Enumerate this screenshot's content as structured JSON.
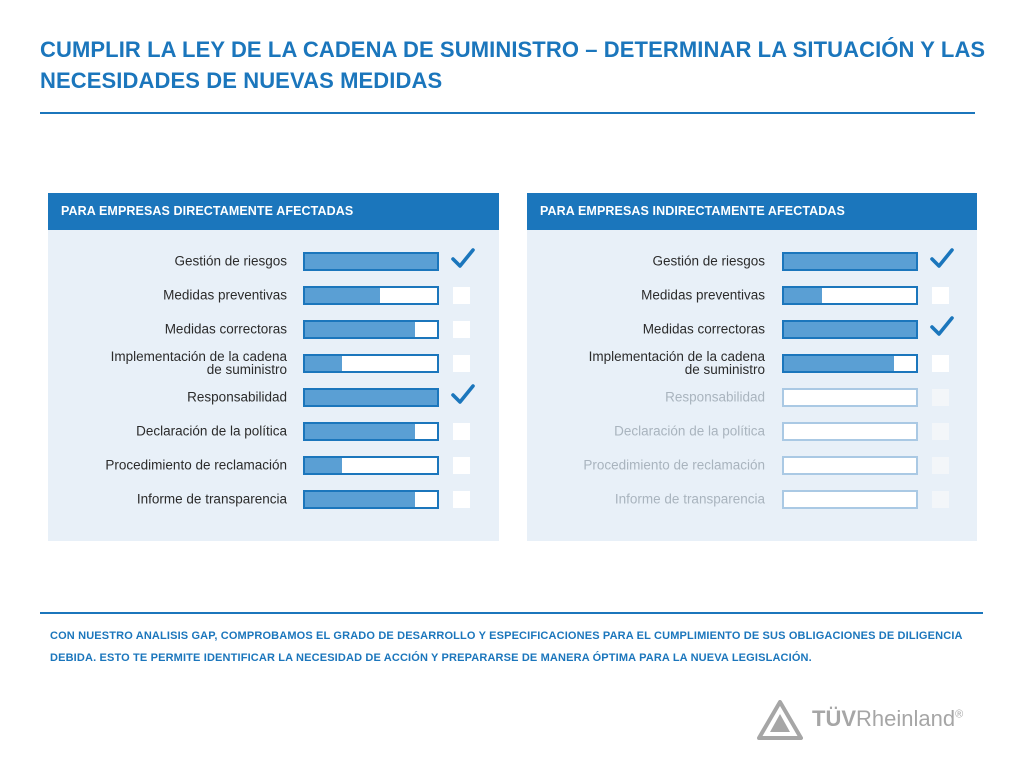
{
  "title": "CUMPLIR LA LEY DE LA CADENA DE SUMINISTRO – DETERMINAR LA SITUACIÓN Y LAS NECESIDADES DE NUEVAS MEDIDAS",
  "panels": [
    {
      "header": "PARA EMPRESAS DIRECTAMENTE AFECTADAS",
      "rows": [
        {
          "label": "Gestión de riesgos",
          "progress": 1.0,
          "checked": true,
          "dim": false
        },
        {
          "label": "Medidas preventivas",
          "progress": 0.57,
          "checked": false,
          "dim": false
        },
        {
          "label": "Medidas correctoras",
          "progress": 0.83,
          "checked": false,
          "dim": false
        },
        {
          "label_line1": "Implementación de la cadena",
          "label_line2": "de suministro",
          "progress": 0.28,
          "checked": false,
          "dim": false
        },
        {
          "label": "Responsabilidad",
          "progress": 1.0,
          "checked": true,
          "dim": false
        },
        {
          "label": "Declaración de la política",
          "progress": 0.83,
          "checked": false,
          "dim": false
        },
        {
          "label": "Procedimiento de reclamación",
          "progress": 0.28,
          "checked": false,
          "dim": false
        },
        {
          "label": "Informe de transparencia",
          "progress": 0.83,
          "checked": false,
          "dim": false
        }
      ]
    },
    {
      "header": "PARA EMPRESAS INDIRECTAMENTE AFECTADAS",
      "rows": [
        {
          "label": "Gestión de riesgos",
          "progress": 1.0,
          "checked": true,
          "dim": false
        },
        {
          "label": "Medidas preventivas",
          "progress": 0.29,
          "checked": false,
          "dim": false
        },
        {
          "label": "Medidas correctoras",
          "progress": 1.0,
          "checked": true,
          "dim": false
        },
        {
          "label_line1": "Implementación de la cadena",
          "label_line2": "de suministro",
          "progress": 0.83,
          "checked": false,
          "dim": false
        },
        {
          "label": "Responsabilidad",
          "progress": 0,
          "checked": false,
          "dim": true
        },
        {
          "label": "Declaración de la política",
          "progress": 0,
          "checked": false,
          "dim": true
        },
        {
          "label": "Procedimiento de reclamación",
          "progress": 0,
          "checked": false,
          "dim": true
        },
        {
          "label": "Informe de transparencia",
          "progress": 0,
          "checked": false,
          "dim": true
        }
      ]
    }
  ],
  "footer": "CON NUESTRO ANALISIS GAP, COMPROBAMOS EL GRADO DE DESARROLLO Y ESPECIFICACIONES PARA EL CUMPLIMIENTO DE SUS OBLIGACIONES DE DILIGENCIA DEBIDA. ESTO TE PERMITE IDENTIFICAR LA NECESIDAD DE ACCIÓN Y PREPARARSE DE MANERA ÓPTIMA PARA LA NUEVA LEGISLACIÓN.",
  "logo": {
    "part1": "TÜV",
    "part2": "Rheinland",
    "reg": "®"
  },
  "colors": {
    "brand_blue": "#1b76bc",
    "fill_blue": "#5a9fd4",
    "panel_bg": "#e8f0f8"
  }
}
